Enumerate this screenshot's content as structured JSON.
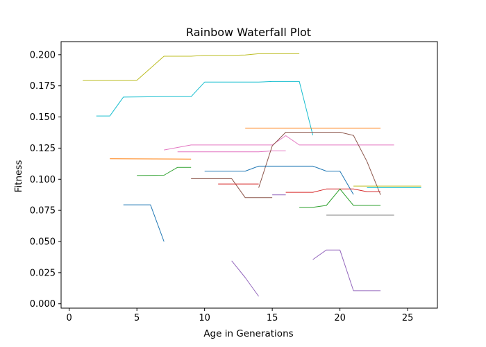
{
  "chart_data": {
    "type": "line",
    "title": "Rainbow Waterfall Plot",
    "xlabel": "Age in Generations",
    "ylabel": "Fitness",
    "xlim": [
      -0.6,
      27.2
    ],
    "ylim": [
      -0.0035,
      0.2105
    ],
    "xticks": [
      0,
      5,
      10,
      15,
      20,
      25
    ],
    "xtick_labels": [
      "0",
      "5",
      "10",
      "15",
      "20",
      "25"
    ],
    "yticks": [
      0.0,
      0.025,
      0.05,
      0.075,
      0.1,
      0.125,
      0.15,
      0.175,
      0.2
    ],
    "ytick_labels": [
      "0.000",
      "0.025",
      "0.050",
      "0.075",
      "0.100",
      "0.125",
      "0.150",
      "0.175",
      "0.200"
    ],
    "grid": false,
    "legend": false,
    "series": [
      {
        "color": "#bcbd22",
        "x": [
          1,
          5,
          7,
          9,
          10,
          12,
          13,
          14,
          17
        ],
        "y": [
          0.1795,
          0.1795,
          0.1988,
          0.1988,
          0.1995,
          0.1995,
          0.1998,
          0.2008,
          0.2008
        ]
      },
      {
        "color": "#17becf",
        "x": [
          2,
          3,
          4,
          7,
          9,
          10,
          14,
          15,
          17,
          18
        ],
        "y": [
          0.1508,
          0.1508,
          0.166,
          0.1663,
          0.1663,
          0.178,
          0.178,
          0.1785,
          0.1785,
          0.1353
        ]
      },
      {
        "color": "#ff7f0e",
        "x": [
          13,
          23
        ],
        "y": [
          0.141,
          0.141
        ]
      },
      {
        "color": "#e377c2",
        "x": [
          7,
          8,
          9,
          14,
          15,
          16,
          17,
          24
        ],
        "y": [
          0.1235,
          0.1255,
          0.1275,
          0.1275,
          0.1275,
          0.135,
          0.1275,
          0.1275
        ]
      },
      {
        "color": "#e377c2",
        "x": [
          8,
          14,
          15,
          16
        ],
        "y": [
          0.122,
          0.122,
          0.1228,
          0.1228
        ]
      },
      {
        "color": "#ff7f0e",
        "x": [
          3,
          9
        ],
        "y": [
          0.1165,
          0.1162
        ]
      },
      {
        "color": "#8c564b",
        "x": [
          14,
          15,
          16,
          20,
          21,
          22,
          23
        ],
        "y": [
          0.0932,
          0.1268,
          0.1378,
          0.1378,
          0.1352,
          0.1142,
          0.0875
        ]
      },
      {
        "color": "#2ca02c",
        "x": [
          5,
          7,
          8,
          9
        ],
        "y": [
          0.103,
          0.1032,
          0.1095,
          0.1095
        ]
      },
      {
        "color": "#1f77b4",
        "x": [
          10,
          13,
          14,
          16,
          18,
          19,
          20,
          21
        ],
        "y": [
          0.1065,
          0.1065,
          0.1105,
          0.1105,
          0.1105,
          0.1065,
          0.1065,
          0.0878
        ]
      },
      {
        "color": "#8c564b",
        "x": [
          9,
          12,
          13,
          15
        ],
        "y": [
          0.1005,
          0.1005,
          0.0852,
          0.0852
        ]
      },
      {
        "color": "#d62728",
        "x": [
          11,
          14
        ],
        "y": [
          0.0962,
          0.0962
        ]
      },
      {
        "color": "#d62728",
        "x": [
          16,
          18,
          19,
          20,
          21,
          22,
          23
        ],
        "y": [
          0.0895,
          0.0895,
          0.0922,
          0.0922,
          0.0922,
          0.09,
          0.09
        ]
      },
      {
        "color": "#bcbd22",
        "x": [
          21,
          26
        ],
        "y": [
          0.0945,
          0.0945
        ]
      },
      {
        "color": "#17becf",
        "x": [
          22,
          26
        ],
        "y": [
          0.0932,
          0.0932
        ]
      },
      {
        "color": "#2ca02c",
        "x": [
          17,
          18,
          19,
          20,
          21,
          23
        ],
        "y": [
          0.0775,
          0.0775,
          0.079,
          0.0922,
          0.079,
          0.079
        ]
      },
      {
        "color": "#1f77b4",
        "x": [
          4,
          6,
          7
        ],
        "y": [
          0.0795,
          0.0795,
          0.05
        ]
      },
      {
        "color": "#9467bd",
        "x": [
          15,
          16
        ],
        "y": [
          0.0875,
          0.0875
        ]
      },
      {
        "color": "#7f7f7f",
        "x": [
          19,
          24
        ],
        "y": [
          0.0712,
          0.0712
        ]
      },
      {
        "color": "#9467bd",
        "x": [
          12,
          13,
          14
        ],
        "y": [
          0.0345,
          0.021,
          0.006
        ]
      },
      {
        "color": "#9467bd",
        "x": [
          18,
          19,
          20,
          21,
          23
        ],
        "y": [
          0.0355,
          0.0432,
          0.0432,
          0.0105,
          0.0105
        ]
      }
    ]
  }
}
